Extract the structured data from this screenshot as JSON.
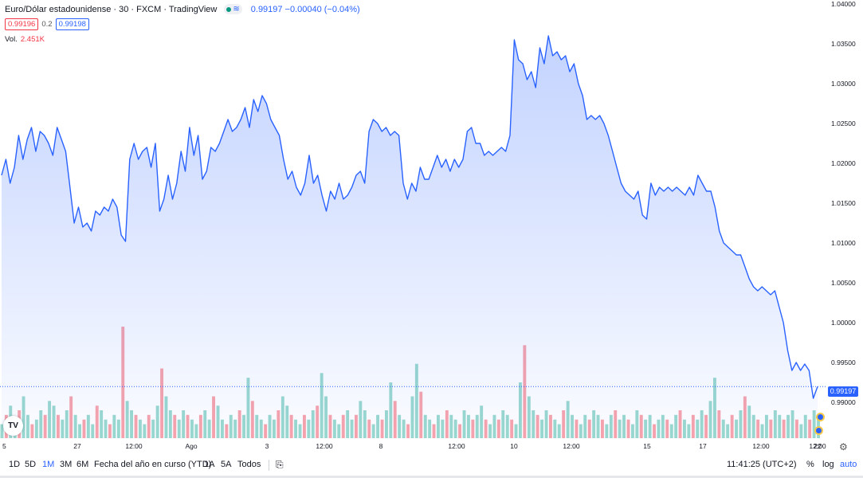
{
  "legend": {
    "symbol": "Euro/Dólar estadounidense · 30 · FXCM · TradingView",
    "last": "0.99197",
    "change": "−0.00040 (−0.04%)",
    "status_color": "#089981",
    "wave_icon": "≋"
  },
  "quote": {
    "bid": "0.99196",
    "spread": "0.2",
    "ask": "0.99198"
  },
  "volume": {
    "label": "Vol.",
    "value": "2.451K"
  },
  "price_badge": "0.99197",
  "logo": "TV",
  "toolbar": {
    "ranges": [
      "1D",
      "5D",
      "1M",
      "3M",
      "6M",
      "Fecha del año en curso (YTD)",
      "1A",
      "5A",
      "Todos"
    ],
    "active_range": "1M",
    "calendar_icon": "⎘",
    "time": "11:41:25 (UTC+2)",
    "percent": "%",
    "log": "log",
    "auto": "auto",
    "settings_icon": "⚙"
  },
  "chart_data": {
    "type": "area",
    "title": "",
    "xlabel": "",
    "ylabel": "",
    "x_ticks": [
      "5",
      "27",
      "12:00",
      "Ago",
      "3",
      "12:00",
      "8",
      "12:00",
      "10",
      "12:00",
      "15",
      "17",
      "12:00",
      "22",
      "12:00"
    ],
    "y_ticks": [
      0.99,
      0.995,
      1.0,
      1.005,
      1.01,
      1.015,
      1.02,
      1.025,
      1.03,
      1.035,
      1.04
    ],
    "y_tick_labels": [
      "0.99000",
      "0.99500",
      "1.00000",
      "1.00500",
      "1.01000",
      "1.01500",
      "1.02000",
      "1.02500",
      "1.03000",
      "1.03500",
      "1.04000"
    ],
    "ylim": [
      0.9855,
      1.0405
    ],
    "last_value": 0.99197,
    "line_color": "#2962ff",
    "series": [
      {
        "values": [
          1.0185,
          1.0205,
          1.0175,
          1.0195,
          1.0235,
          1.0205,
          1.023,
          1.0245,
          1.0215,
          1.024,
          1.0235,
          1.0225,
          1.021,
          1.0245,
          1.023,
          1.0215,
          1.017,
          1.0125,
          1.0145,
          1.012,
          1.0125,
          1.0115,
          1.014,
          1.0135,
          1.0145,
          1.014,
          1.0155,
          1.0145,
          1.011,
          1.0102,
          1.0205,
          1.0225,
          1.0205,
          1.0215,
          1.022,
          1.0195,
          1.0225,
          1.014,
          1.0155,
          1.0185,
          1.0155,
          1.0175,
          1.0215,
          1.019,
          1.0245,
          1.021,
          1.0235,
          1.018,
          1.019,
          1.022,
          1.0215,
          1.0225,
          1.024,
          1.0255,
          1.024,
          1.0245,
          1.0255,
          1.027,
          1.0245,
          1.028,
          1.0265,
          1.0285,
          1.0275,
          1.0255,
          1.0245,
          1.0235,
          1.0205,
          1.018,
          1.019,
          1.017,
          1.016,
          1.0175,
          1.021,
          1.0175,
          1.0185,
          1.016,
          1.014,
          1.0165,
          1.0155,
          1.0175,
          1.0155,
          1.016,
          1.017,
          1.0185,
          1.019,
          1.0175,
          1.024,
          1.0255,
          1.025,
          1.024,
          1.0245,
          1.0235,
          1.024,
          1.0235,
          1.0175,
          1.0155,
          1.0175,
          1.0165,
          1.0195,
          1.018,
          1.018,
          1.0195,
          1.021,
          1.0195,
          1.0205,
          1.019,
          1.0205,
          1.0195,
          1.0205,
          1.024,
          1.0245,
          1.0225,
          1.0225,
          1.021,
          1.0215,
          1.021,
          1.0215,
          1.022,
          1.0215,
          1.0235,
          1.0355,
          1.033,
          1.0325,
          1.0305,
          1.0315,
          1.0295,
          1.0345,
          1.0325,
          1.036,
          1.0335,
          1.034,
          1.033,
          1.0335,
          1.0315,
          1.0325,
          1.03,
          1.0285,
          1.0255,
          1.026,
          1.0255,
          1.026,
          1.025,
          1.0235,
          1.0215,
          1.0195,
          1.0175,
          1.0165,
          1.016,
          1.0155,
          1.0165,
          1.0135,
          1.013,
          1.0175,
          1.016,
          1.017,
          1.0165,
          1.017,
          1.0165,
          1.017,
          1.0165,
          1.016,
          1.017,
          1.016,
          1.0185,
          1.0175,
          1.0165,
          1.0165,
          1.0145,
          1.0115,
          1.01,
          1.0095,
          1.009,
          1.0085,
          1.0085,
          1.007,
          1.0055,
          1.0045,
          1.004,
          1.0045,
          1.004,
          1.0035,
          1.004,
          1.002,
          1.0,
          0.9965,
          0.994,
          0.995,
          0.994,
          0.9948,
          0.994,
          0.9905,
          0.99197
        ]
      }
    ],
    "volume": {
      "up_color": "#22ab94",
      "down_color": "#f23645",
      "values": [
        0.3,
        0.5,
        0.7,
        0.4,
        0.6,
        0.9,
        0.5,
        0.3,
        0.4,
        0.6,
        0.5,
        0.8,
        0.7,
        0.5,
        0.4,
        0.6,
        0.9,
        0.5,
        0.3,
        0.4,
        0.5,
        0.3,
        0.7,
        0.6,
        0.4,
        0.3,
        0.5,
        0.4,
        2.4,
        0.8,
        0.6,
        0.5,
        0.4,
        0.3,
        0.5,
        0.4,
        0.7,
        1.5,
        0.9,
        0.6,
        0.5,
        0.4,
        0.6,
        0.5,
        0.4,
        0.3,
        0.5,
        0.6,
        0.4,
        0.9,
        0.7,
        0.4,
        0.3,
        0.5,
        0.4,
        0.6,
        0.5,
        1.3,
        0.8,
        0.5,
        0.4,
        0.3,
        0.5,
        0.4,
        0.6,
        0.9,
        0.7,
        0.5,
        0.4,
        0.3,
        0.5,
        0.4,
        0.6,
        0.7,
        1.4,
        0.9,
        0.5,
        0.4,
        0.3,
        0.5,
        0.6,
        0.4,
        0.5,
        0.8,
        0.6,
        0.4,
        0.3,
        0.5,
        0.4,
        0.6,
        1.2,
        0.8,
        0.5,
        0.4,
        0.3,
        0.9,
        1.6,
        1.0,
        0.5,
        0.4,
        0.3,
        0.5,
        0.4,
        0.6,
        0.5,
        0.4,
        0.3,
        0.6,
        0.5,
        0.4,
        0.5,
        0.7,
        0.4,
        0.3,
        0.5,
        0.4,
        0.6,
        0.5,
        0.4,
        0.3,
        1.2,
        2.0,
        0.9,
        0.6,
        0.5,
        0.4,
        0.6,
        0.5,
        0.4,
        0.3,
        0.6,
        0.8,
        0.5,
        0.4,
        0.3,
        0.5,
        0.4,
        0.6,
        0.5,
        0.4,
        0.3,
        0.5,
        0.6,
        0.4,
        0.5,
        0.4,
        0.3,
        0.6,
        0.5,
        0.4,
        0.5,
        0.3,
        0.4,
        0.5,
        0.4,
        0.3,
        0.5,
        0.6,
        0.4,
        0.3,
        0.5,
        0.4,
        0.6,
        0.5,
        0.8,
        1.3,
        0.6,
        0.4,
        0.3,
        0.5,
        0.4,
        0.6,
        0.9,
        0.7,
        0.5,
        0.4,
        0.3,
        0.5,
        0.4,
        0.6,
        0.5,
        0.4,
        0.5,
        0.6,
        0.4,
        0.3,
        0.5,
        0.4,
        0.6,
        0.5
      ]
    }
  }
}
